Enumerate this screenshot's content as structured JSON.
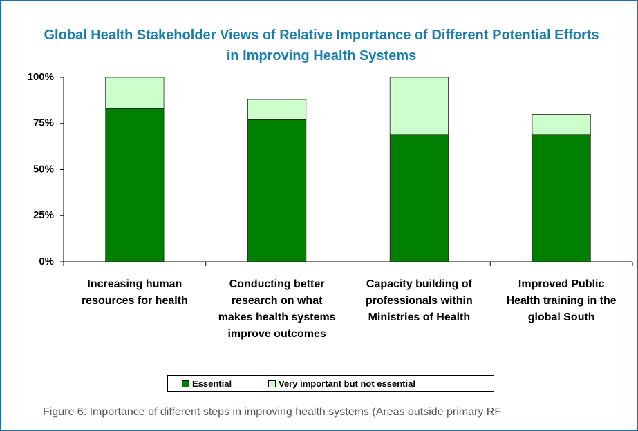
{
  "chart_data": {
    "type": "stacked_bar",
    "title": "Global Health Stakeholder Views of Relative Importance of Different Potential Efforts in Improving Health Systems",
    "categories": [
      "Increasing human resources for health",
      "Conducting better research on what makes health systems improve outcomes",
      "Capacity building of professionals within Ministries of Health",
      "Improved Public Health training in the global South"
    ],
    "series": [
      {
        "name": "Essential",
        "color": "#008000",
        "values": [
          83,
          77,
          69,
          69
        ]
      },
      {
        "name": "Very important but not essential",
        "color": "#ccffcc",
        "values": [
          17,
          11,
          31,
          11
        ]
      }
    ],
    "ylim": [
      0,
      100
    ],
    "yticks": [
      {
        "value": 0,
        "label": "0%"
      },
      {
        "value": 25,
        "label": "25%"
      },
      {
        "value": 50,
        "label": "50%"
      },
      {
        "value": 75,
        "label": "75%"
      },
      {
        "value": 100,
        "label": "100%"
      }
    ],
    "grid": false,
    "legend": "bottom",
    "caption": "Figure 6: Importance of different steps in improving health systems (Areas outside primary RF"
  }
}
